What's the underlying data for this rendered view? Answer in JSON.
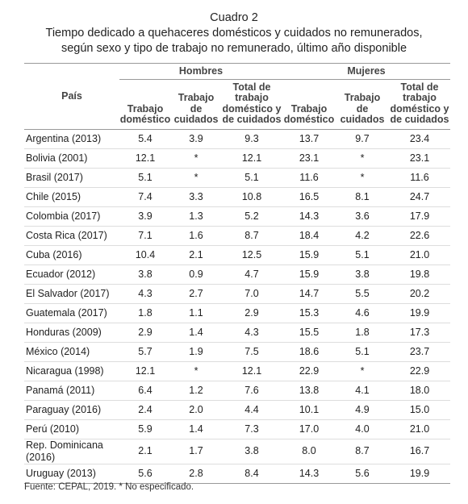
{
  "caption": {
    "label": "Cuadro 2",
    "title": "Tiempo dedicado a quehaceres domésticos y cuidados no remunerados, según sexo y tipo de trabajo no remunerado, último año disponible"
  },
  "table": {
    "row_header": "País",
    "groups": [
      "Hombres",
      "Mujeres"
    ],
    "columns": [
      [
        "Trabajo",
        "doméstico"
      ],
      [
        "Trabajo",
        "de",
        "cuidados"
      ],
      [
        "Total de",
        "trabajo",
        "doméstico y",
        "de cuidados"
      ],
      [
        "Trabajo",
        "doméstico"
      ],
      [
        "Trabajo",
        "de",
        "cuidados"
      ],
      [
        "Total de",
        "trabajo",
        "doméstico y",
        "de cuidados"
      ]
    ],
    "rows": [
      [
        "Argentina (2013)",
        "5.4",
        "3.9",
        "9.3",
        "13.7",
        "9.7",
        "23.4"
      ],
      [
        "Bolivia (2001)",
        "12.1",
        "*",
        "12.1",
        "23.1",
        "*",
        "23.1"
      ],
      [
        "Brasil (2017)",
        "5.1",
        "*",
        "5.1",
        "11.6",
        "*",
        "11.6"
      ],
      [
        "Chile (2015)",
        "7.4",
        "3.3",
        "10.8",
        "16.5",
        "8.1",
        "24.7"
      ],
      [
        "Colombia (2017)",
        "3.9",
        "1.3",
        "5.2",
        "14.3",
        "3.6",
        "17.9"
      ],
      [
        "Costa Rica (2017)",
        "7.1",
        "1.6",
        "8.7",
        "18.4",
        "4.2",
        "22.6"
      ],
      [
        "Cuba (2016)",
        "10.4",
        "2.1",
        "12.5",
        "15.9",
        "5.1",
        "21.0"
      ],
      [
        "Ecuador (2012)",
        "3.8",
        "0.9",
        "4.7",
        "15.9",
        "3.8",
        "19.8"
      ],
      [
        "El Salvador (2017)",
        "4.3",
        "2.7",
        "7.0",
        "14.7",
        "5.5",
        "20.2"
      ],
      [
        "Guatemala (2017)",
        "1.8",
        "1.1",
        "2.9",
        "15.3",
        "4.6",
        "19.9"
      ],
      [
        "Honduras (2009)",
        "2.9",
        "1.4",
        "4.3",
        "15.5",
        "1.8",
        "17.3"
      ],
      [
        "México (2014)",
        "5.7",
        "1.9",
        "7.5",
        "18.6",
        "5.1",
        "23.7"
      ],
      [
        "Nicaragua (1998)",
        "12.1",
        "*",
        "12.1",
        "22.9",
        "*",
        "22.9"
      ],
      [
        "Panamá (2011)",
        "6.4",
        "1.2",
        "7.6",
        "13.8",
        "4.1",
        "18.0"
      ],
      [
        "Paraguay (2016)",
        "2.4",
        "2.0",
        "4.4",
        "10.1",
        "4.9",
        "15.0"
      ],
      [
        "Perú (2010)",
        "5.9",
        "1.4",
        "7.3",
        "17.0",
        "4.0",
        "21.0"
      ],
      [
        "Rep. Dominicana (2016)",
        "2.1",
        "1.7",
        "3.8",
        "8.0",
        "8.7",
        "16.7"
      ],
      [
        "Uruguay (2013)",
        "5.6",
        "2.8",
        "8.4",
        "14.3",
        "5.6",
        "19.9"
      ]
    ]
  },
  "footnote": "Fuente: CEPAL, 2019. * No especificado."
}
